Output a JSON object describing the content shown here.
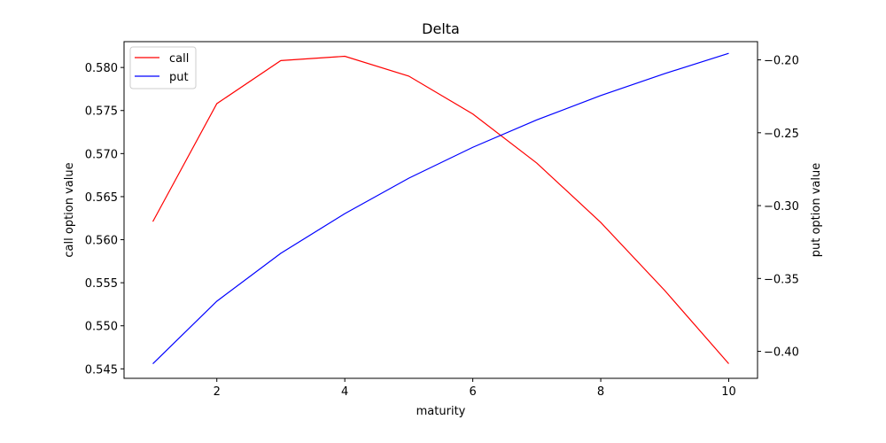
{
  "chart_data": {
    "type": "line",
    "title": "Delta",
    "xlabel": "maturity",
    "ylabel_left": "call option value",
    "ylabel_right": "put option value",
    "x": [
      1,
      2,
      3,
      4,
      5,
      6,
      7,
      8,
      9,
      10
    ],
    "xlim": [
      0.55,
      10.45
    ],
    "xticks": [
      2,
      4,
      6,
      8,
      10
    ],
    "ylim_left": [
      0.5439,
      0.583
    ],
    "yticks_left": [
      0.545,
      0.55,
      0.555,
      0.56,
      0.565,
      0.57,
      0.575,
      0.58
    ],
    "ylim_right": [
      -0.4185,
      -0.1875
    ],
    "yticks_right": [
      -0.4,
      -0.35,
      -0.3,
      -0.25,
      -0.2
    ],
    "grid": false,
    "legend_position": "top-left",
    "series": [
      {
        "name": "call",
        "axis": "left",
        "color": "#ff0000",
        "values": [
          0.5621,
          0.5758,
          0.5808,
          0.5813,
          0.579,
          0.5746,
          0.5689,
          0.562,
          0.5541,
          0.5456
        ]
      },
      {
        "name": "put",
        "axis": "right",
        "color": "#0000ff",
        "values": [
          -0.4085,
          -0.3656,
          -0.3327,
          -0.3055,
          -0.2812,
          -0.26,
          -0.2412,
          -0.2245,
          -0.2094,
          -0.1955
        ]
      }
    ]
  }
}
